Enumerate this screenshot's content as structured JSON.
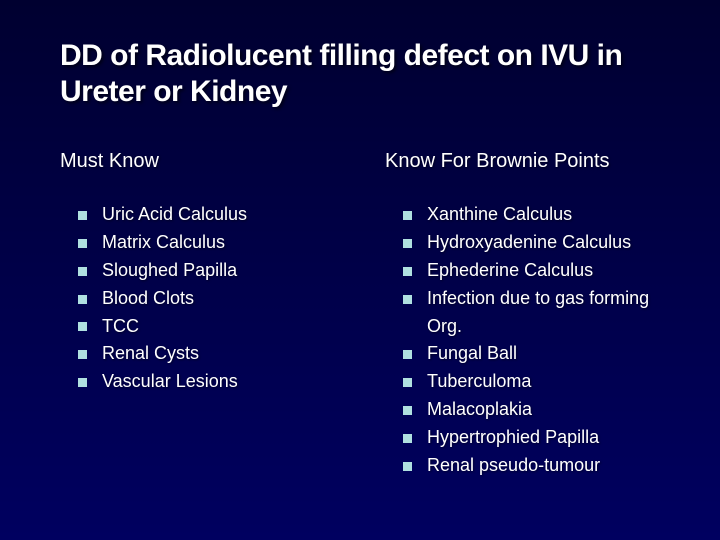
{
  "slide": {
    "title": "DD of Radiolucent filling defect on IVU in Ureter or Kidney",
    "title_fontsize": 30,
    "title_color": "#ffffff",
    "background_gradient": [
      "#000030",
      "#000048",
      "#000060"
    ],
    "bullet_marker_color": "#b0e0e0",
    "bullet_fontsize": 18,
    "heading_fontsize": 20,
    "columns": [
      {
        "heading": "Must Know",
        "items": [
          "Uric Acid Calculus",
          "Matrix Calculus",
          "Sloughed Papilla",
          "Blood Clots",
          "TCC",
          "Renal Cysts",
          "Vascular Lesions"
        ]
      },
      {
        "heading": "Know  For Brownie Points",
        "items": [
          "Xanthine Calculus",
          "Hydroxyadenine Calculus",
          "Ephederine Calculus",
          "Infection due to gas forming Org.",
          "Fungal Ball",
          "Tuberculoma",
          "Malacoplakia",
          "Hypertrophied Papilla",
          "Renal pseudo-tumour"
        ]
      }
    ]
  }
}
